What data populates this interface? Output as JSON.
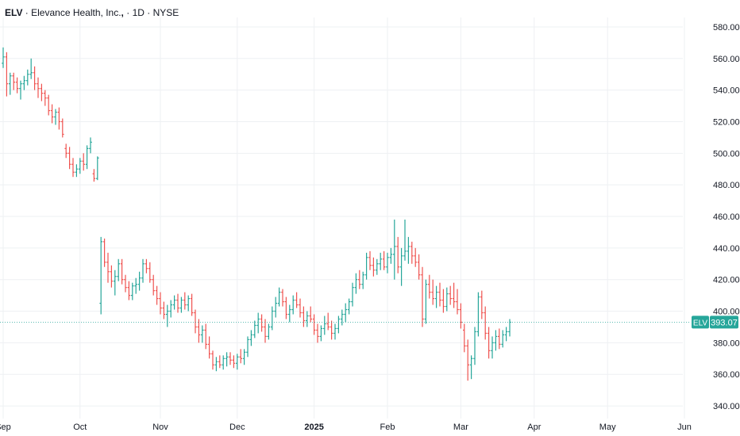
{
  "header": {
    "symbol": "ELV",
    "sep1": "·",
    "company": "Elevance Health, Inc.",
    "sep2": "·",
    "interval": "1D",
    "sep3": "·",
    "exchange": "NYSE"
  },
  "colors": {
    "up": "#26a69a",
    "down": "#ef5350",
    "grid": "#eef0f3",
    "axis_text": "#131722",
    "price_line": "#26a69a"
  },
  "chart_data": {
    "type": "ohlc",
    "y_axis": {
      "ticks": [
        340,
        360,
        380,
        400,
        420,
        440,
        460,
        480,
        500,
        520,
        540,
        560,
        580
      ],
      "tick_labels": [
        "340.00",
        "360.00",
        "380.00",
        "400.00",
        "420.00",
        "440.00",
        "460.00",
        "480.00",
        "500.00",
        "520.00",
        "540.00",
        "560.00",
        "580.00"
      ],
      "ylim": [
        332,
        586
      ]
    },
    "x_axis": {
      "labels": [
        "Sep",
        "Oct",
        "Nov",
        "Dec",
        "2025",
        "Feb",
        "Mar",
        "Apr",
        "May",
        "Jun"
      ],
      "label_bar_index": [
        0,
        22,
        45,
        67,
        89,
        110,
        131,
        152,
        173,
        195
      ],
      "bold_labels": [
        "2025"
      ]
    },
    "last_price": {
      "label": "ELV",
      "value": 393.07,
      "value_text": "393.07"
    },
    "bars": [
      [
        557,
        567,
        554,
        561
      ],
      [
        561,
        564,
        536,
        544
      ],
      [
        544,
        551,
        537,
        549
      ],
      [
        549,
        551,
        540,
        545
      ],
      [
        545,
        548,
        538,
        541
      ],
      [
        541,
        546,
        534,
        544
      ],
      [
        544,
        549,
        540,
        546
      ],
      [
        546,
        553,
        543,
        550
      ],
      [
        550,
        560,
        547,
        551
      ],
      [
        551,
        555,
        540,
        544
      ],
      [
        544,
        548,
        535,
        541
      ],
      [
        541,
        544,
        533,
        538
      ],
      [
        538,
        540,
        530,
        535
      ],
      [
        535,
        537,
        524,
        527
      ],
      [
        527,
        531,
        519,
        523
      ],
      [
        523,
        528,
        518,
        526
      ],
      [
        526,
        529,
        515,
        520
      ],
      [
        520,
        522,
        510,
        512
      ],
      [
        503,
        506,
        497,
        500
      ],
      [
        500,
        504,
        490,
        493
      ],
      [
        493,
        497,
        485,
        488
      ],
      [
        488,
        493,
        485,
        490
      ],
      [
        490,
        497,
        487,
        495
      ],
      [
        495,
        500,
        489,
        493
      ],
      [
        493,
        505,
        490,
        503
      ],
      [
        503,
        510,
        500,
        507
      ],
      [
        487,
        490,
        482,
        484
      ],
      [
        484,
        498,
        483,
        497
      ],
      [
        405,
        447,
        398,
        444
      ],
      [
        444,
        446,
        428,
        431
      ],
      [
        431,
        437,
        418,
        425
      ],
      [
        425,
        429,
        415,
        419
      ],
      [
        419,
        426,
        410,
        422
      ],
      [
        422,
        433,
        419,
        430
      ],
      [
        430,
        433,
        417,
        420
      ],
      [
        420,
        423,
        412,
        415
      ],
      [
        415,
        419,
        407,
        410
      ],
      [
        410,
        418,
        407,
        416
      ],
      [
        416,
        421,
        411,
        417
      ],
      [
        417,
        425,
        413,
        421
      ],
      [
        421,
        433,
        418,
        430
      ],
      [
        430,
        433,
        424,
        427
      ],
      [
        427,
        431,
        418,
        420
      ],
      [
        420,
        423,
        410,
        413
      ],
      [
        413,
        416,
        404,
        408
      ],
      [
        408,
        412,
        398,
        402
      ],
      [
        402,
        406,
        395,
        398
      ],
      [
        398,
        404,
        390,
        400
      ],
      [
        400,
        407,
        396,
        404
      ],
      [
        404,
        410,
        401,
        407
      ],
      [
        407,
        411,
        399,
        402
      ],
      [
        402,
        409,
        399,
        407
      ],
      [
        407,
        412,
        401,
        404
      ],
      [
        404,
        410,
        400,
        408
      ],
      [
        408,
        411,
        397,
        399
      ],
      [
        399,
        401,
        386,
        390
      ],
      [
        390,
        395,
        380,
        385
      ],
      [
        385,
        391,
        380,
        388
      ],
      [
        388,
        392,
        376,
        379
      ],
      [
        379,
        384,
        370,
        373
      ],
      [
        373,
        375,
        363,
        366
      ],
      [
        366,
        371,
        362,
        368
      ],
      [
        368,
        372,
        364,
        366
      ],
      [
        366,
        372,
        363,
        370
      ],
      [
        370,
        374,
        365,
        371
      ],
      [
        371,
        374,
        366,
        369
      ],
      [
        369,
        372,
        364,
        367
      ],
      [
        367,
        373,
        363,
        371
      ],
      [
        371,
        376,
        367,
        370
      ],
      [
        370,
        376,
        366,
        374
      ],
      [
        374,
        384,
        371,
        382
      ],
      [
        382,
        388,
        378,
        385
      ],
      [
        385,
        394,
        383,
        391
      ],
      [
        391,
        399,
        386,
        395
      ],
      [
        395,
        398,
        387,
        390
      ],
      [
        390,
        395,
        380,
        384
      ],
      [
        384,
        392,
        382,
        390
      ],
      [
        390,
        403,
        388,
        400
      ],
      [
        400,
        409,
        396,
        405
      ],
      [
        405,
        415,
        403,
        412
      ],
      [
        412,
        414,
        403,
        406
      ],
      [
        406,
        409,
        395,
        398
      ],
      [
        398,
        404,
        393,
        401
      ],
      [
        401,
        410,
        398,
        407
      ],
      [
        407,
        412,
        402,
        404
      ],
      [
        404,
        408,
        396,
        399
      ],
      [
        399,
        403,
        390,
        394
      ],
      [
        394,
        400,
        390,
        397
      ],
      [
        397,
        403,
        393,
        395
      ],
      [
        395,
        398,
        385,
        388
      ],
      [
        388,
        392,
        380,
        384
      ],
      [
        384,
        391,
        381,
        389
      ],
      [
        389,
        397,
        385,
        392
      ],
      [
        392,
        399,
        388,
        390
      ],
      [
        390,
        394,
        382,
        386
      ],
      [
        386,
        392,
        382,
        389
      ],
      [
        389,
        397,
        386,
        395
      ],
      [
        395,
        401,
        391,
        398
      ],
      [
        398,
        405,
        393,
        401
      ],
      [
        401,
        408,
        398,
        406
      ],
      [
        406,
        418,
        403,
        415
      ],
      [
        415,
        424,
        411,
        420
      ],
      [
        420,
        426,
        414,
        417
      ],
      [
        417,
        425,
        414,
        423
      ],
      [
        423,
        437,
        420,
        434
      ],
      [
        434,
        438,
        426,
        429
      ],
      [
        429,
        434,
        422,
        426
      ],
      [
        426,
        433,
        423,
        430
      ],
      [
        430,
        437,
        426,
        433
      ],
      [
        433,
        438,
        426,
        428
      ],
      [
        428,
        437,
        424,
        434
      ],
      [
        434,
        440,
        430,
        436
      ],
      [
        436,
        458,
        420,
        441
      ],
      [
        441,
        447,
        424,
        428
      ],
      [
        428,
        440,
        416,
        435
      ],
      [
        435,
        458,
        432,
        438
      ],
      [
        438,
        447,
        430,
        441
      ],
      [
        441,
        444,
        430,
        435
      ],
      [
        435,
        440,
        428,
        431
      ],
      [
        431,
        436,
        420,
        423
      ],
      [
        423,
        428,
        390,
        395
      ],
      [
        395,
        420,
        392,
        417
      ],
      [
        417,
        423,
        408,
        412
      ],
      [
        412,
        420,
        404,
        408
      ],
      [
        408,
        416,
        402,
        412
      ],
      [
        412,
        418,
        403,
        407
      ],
      [
        407,
        414,
        399,
        403
      ],
      [
        403,
        415,
        400,
        411
      ],
      [
        411,
        416,
        404,
        408
      ],
      [
        408,
        418,
        402,
        406
      ],
      [
        406,
        414,
        398,
        401
      ],
      [
        401,
        405,
        389,
        393
      ],
      [
        388,
        392,
        374,
        378
      ],
      [
        378,
        382,
        356,
        366
      ],
      [
        366,
        372,
        357,
        370
      ],
      [
        370,
        390,
        366,
        387
      ],
      [
        387,
        412,
        384,
        409
      ],
      [
        409,
        413,
        395,
        399
      ],
      [
        399,
        403,
        382,
        386
      ],
      [
        386,
        390,
        370,
        375
      ],
      [
        375,
        384,
        370,
        380
      ],
      [
        380,
        388,
        375,
        384
      ],
      [
        384,
        389,
        376,
        379
      ],
      [
        379,
        388,
        377,
        385
      ],
      [
        385,
        390,
        381,
        387
      ],
      [
        387,
        395,
        384,
        393
      ]
    ]
  }
}
